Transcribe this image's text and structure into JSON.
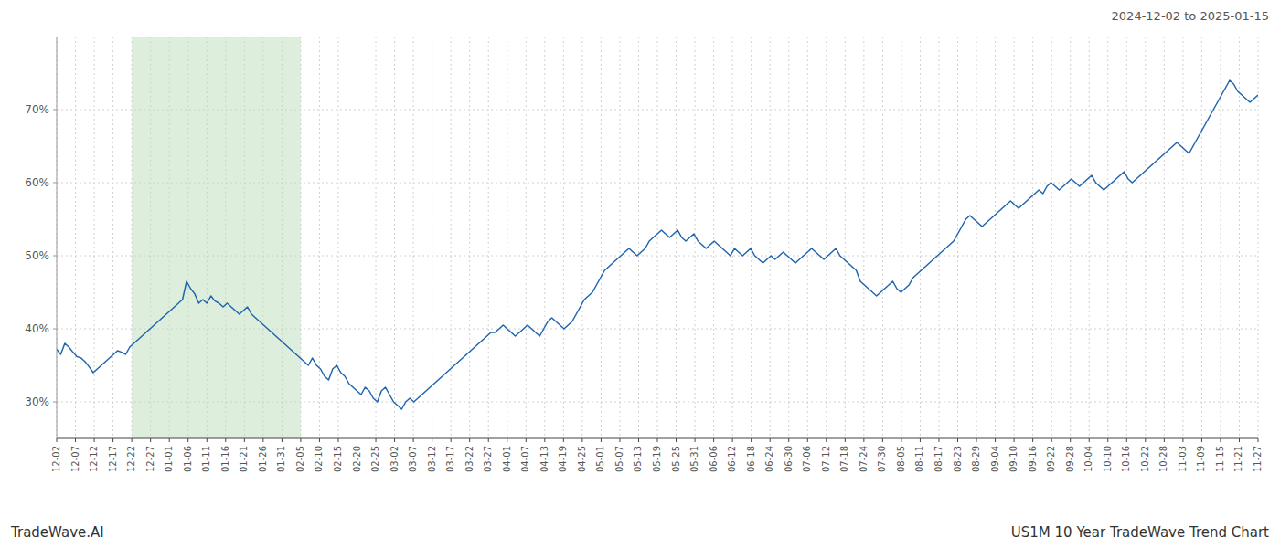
{
  "chart_data": {
    "type": "line",
    "title": "2024-12-02 to 2025-01-15",
    "annotations": [
      "TradeWave.AI",
      "US1M 10 Year TradeWave Trend Chart"
    ],
    "color": "#2166ac",
    "grid": true,
    "highlight": {
      "x": [
        18.5,
        60.125
      ],
      "color": "#d4ead4"
    },
    "xlim": [
      0,
      296
    ],
    "ylim": [
      25,
      80
    ],
    "yticks": [
      {
        "value": 30,
        "label": "30%"
      },
      {
        "value": 40,
        "label": "40%"
      },
      {
        "value": 50,
        "label": "50%"
      },
      {
        "value": 60,
        "label": "60%"
      },
      {
        "value": 70,
        "label": "70%"
      }
    ],
    "xticks": [
      {
        "value": 0,
        "label": "12-02"
      },
      {
        "value": 4.625,
        "label": "12-07"
      },
      {
        "value": 9.25,
        "label": "12-12"
      },
      {
        "value": 13.875,
        "label": "12-17"
      },
      {
        "value": 18.5,
        "label": "12-22"
      },
      {
        "value": 23.125,
        "label": "12-27"
      },
      {
        "value": 27.75,
        "label": "01-01"
      },
      {
        "value": 32.375,
        "label": "01-06"
      },
      {
        "value": 37,
        "label": "01-11"
      },
      {
        "value": 41.625,
        "label": "01-16"
      },
      {
        "value": 46.25,
        "label": "01-21"
      },
      {
        "value": 50.875,
        "label": "01-26"
      },
      {
        "value": 55.5,
        "label": "01-31"
      },
      {
        "value": 60.125,
        "label": "02-05"
      },
      {
        "value": 64.75,
        "label": "02-10"
      },
      {
        "value": 69.375,
        "label": "02-15"
      },
      {
        "value": 74,
        "label": "02-20"
      },
      {
        "value": 78.625,
        "label": "02-25"
      },
      {
        "value": 83.25,
        "label": "03-02"
      },
      {
        "value": 87.875,
        "label": "03-07"
      },
      {
        "value": 92.5,
        "label": "03-12"
      },
      {
        "value": 97.125,
        "label": "03-17"
      },
      {
        "value": 101.75,
        "label": "03-22"
      },
      {
        "value": 106.375,
        "label": "03-27"
      },
      {
        "value": 111,
        "label": "04-01"
      },
      {
        "value": 115.625,
        "label": "04-07"
      },
      {
        "value": 120.25,
        "label": "04-13"
      },
      {
        "value": 124.875,
        "label": "04-19"
      },
      {
        "value": 129.5,
        "label": "04-25"
      },
      {
        "value": 134.125,
        "label": "05-01"
      },
      {
        "value": 138.75,
        "label": "05-07"
      },
      {
        "value": 143.375,
        "label": "05-13"
      },
      {
        "value": 148,
        "label": "05-19"
      },
      {
        "value": 152.625,
        "label": "05-25"
      },
      {
        "value": 157.25,
        "label": "05-31"
      },
      {
        "value": 161.875,
        "label": "06-06"
      },
      {
        "value": 166.5,
        "label": "06-12"
      },
      {
        "value": 171.125,
        "label": "06-18"
      },
      {
        "value": 175.75,
        "label": "06-24"
      },
      {
        "value": 180.375,
        "label": "06-30"
      },
      {
        "value": 185,
        "label": "07-06"
      },
      {
        "value": 189.625,
        "label": "07-12"
      },
      {
        "value": 194.25,
        "label": "07-18"
      },
      {
        "value": 198.875,
        "label": "07-24"
      },
      {
        "value": 203.5,
        "label": "07-30"
      },
      {
        "value": 208.125,
        "label": "08-05"
      },
      {
        "value": 212.75,
        "label": "08-11"
      },
      {
        "value": 217.375,
        "label": "08-17"
      },
      {
        "value": 222,
        "label": "08-23"
      },
      {
        "value": 226.625,
        "label": "08-29"
      },
      {
        "value": 231.25,
        "label": "09-04"
      },
      {
        "value": 235.875,
        "label": "09-10"
      },
      {
        "value": 240.5,
        "label": "09-16"
      },
      {
        "value": 245.125,
        "label": "09-22"
      },
      {
        "value": 249.75,
        "label": "09-28"
      },
      {
        "value": 254.375,
        "label": "10-04"
      },
      {
        "value": 259,
        "label": "10-10"
      },
      {
        "value": 263.625,
        "label": "10-16"
      },
      {
        "value": 268.25,
        "label": "10-22"
      },
      {
        "value": 272.875,
        "label": "10-28"
      },
      {
        "value": 277.5,
        "label": "11-03"
      },
      {
        "value": 282.125,
        "label": "11-09"
      },
      {
        "value": 286.75,
        "label": "11-15"
      },
      {
        "value": 291.375,
        "label": "11-21"
      },
      {
        "value": 296,
        "label": "11-27"
      }
    ],
    "x": [
      0,
      1,
      2,
      3,
      4,
      5,
      6,
      7,
      8,
      9,
      10,
      11,
      12,
      13,
      14,
      15,
      16,
      17,
      18,
      19,
      20,
      21,
      22,
      23,
      24,
      25,
      26,
      27,
      28,
      29,
      30,
      31,
      32,
      33,
      34,
      35,
      36,
      37,
      38,
      39,
      40,
      41,
      42,
      43,
      44,
      45,
      46,
      47,
      48,
      49,
      50,
      51,
      52,
      53,
      54,
      55,
      56,
      57,
      58,
      59,
      60,
      61,
      62,
      63,
      64,
      65,
      66,
      67,
      68,
      69,
      70,
      71,
      72,
      73,
      74,
      75,
      76,
      77,
      78,
      79,
      80,
      81,
      82,
      83,
      84,
      85,
      86,
      87,
      88,
      89,
      90,
      91,
      92,
      93,
      94,
      95,
      96,
      97,
      98,
      99,
      100,
      101,
      102,
      103,
      104,
      105,
      106,
      107,
      108,
      109,
      110,
      111,
      112,
      113,
      114,
      115,
      116,
      117,
      118,
      119,
      120,
      121,
      122,
      123,
      124,
      125,
      126,
      127,
      128,
      129,
      130,
      131,
      132,
      133,
      134,
      135,
      136,
      137,
      138,
      139,
      140,
      141,
      142,
      143,
      144,
      145,
      146,
      147,
      148,
      149,
      150,
      151,
      152,
      153,
      154,
      155,
      156,
      157,
      158,
      159,
      160,
      161,
      162,
      163,
      164,
      165,
      166,
      167,
      168,
      169,
      170,
      171,
      172,
      173,
      174,
      175,
      176,
      177,
      178,
      179,
      180,
      181,
      182,
      183,
      184,
      185,
      186,
      187,
      188,
      189,
      190,
      191,
      192,
      193,
      194,
      195,
      196,
      197,
      198,
      199,
      200,
      201,
      202,
      203,
      204,
      205,
      206,
      207,
      208,
      209,
      210,
      211,
      212,
      213,
      214,
      215,
      216,
      217,
      218,
      219,
      220,
      221,
      222,
      223,
      224,
      225,
      226,
      227,
      228,
      229,
      230,
      231,
      232,
      233,
      234,
      235,
      236,
      237,
      238,
      239,
      240,
      241,
      242,
      243,
      244,
      245,
      246,
      247,
      248,
      249,
      250,
      251,
      252,
      253,
      254,
      255,
      256,
      257,
      258,
      259,
      260,
      261,
      262,
      263,
      264,
      265,
      266,
      267,
      268,
      269,
      270,
      271,
      272,
      273,
      274,
      275,
      276,
      277,
      278,
      279,
      280,
      281,
      282,
      283,
      284,
      285,
      286,
      287,
      288,
      289,
      290,
      291,
      292,
      293,
      294,
      295,
      296
    ],
    "values": [
      37.2,
      36.5,
      38.0,
      37.5,
      36.8,
      36.2,
      36.0,
      35.5,
      34.8,
      34.0,
      34.5,
      35.0,
      35.5,
      36.0,
      36.5,
      37.0,
      36.8,
      36.5,
      37.5,
      38.0,
      38.5,
      39.0,
      39.5,
      40.0,
      40.5,
      41.0,
      41.5,
      42.0,
      42.5,
      43.0,
      43.5,
      44.0,
      46.5,
      45.5,
      44.8,
      43.5,
      44.0,
      43.5,
      44.5,
      43.8,
      43.5,
      43.0,
      43.5,
      43.0,
      42.5,
      42.0,
      42.5,
      43.0,
      42.0,
      41.5,
      41.0,
      40.5,
      40.0,
      39.5,
      39.0,
      38.5,
      38.0,
      37.5,
      37.0,
      36.5,
      36.0,
      35.5,
      35.0,
      36.0,
      35.0,
      34.5,
      33.5,
      33.0,
      34.5,
      35.0,
      34.0,
      33.5,
      32.5,
      32.0,
      31.5,
      31.0,
      32.0,
      31.5,
      30.5,
      30.0,
      31.5,
      32.0,
      31.0,
      30.0,
      29.5,
      29.0,
      30.0,
      30.5,
      30.0,
      30.5,
      31.0,
      31.5,
      32.0,
      32.5,
      33.0,
      33.5,
      34.0,
      34.5,
      35.0,
      35.5,
      36.0,
      36.5,
      37.0,
      37.5,
      38.0,
      38.5,
      39.0,
      39.5,
      39.5,
      40.0,
      40.5,
      40.0,
      39.5,
      39.0,
      39.5,
      40.0,
      40.5,
      40.0,
      39.5,
      39.0,
      40.0,
      41.0,
      41.5,
      41.0,
      40.5,
      40.0,
      40.5,
      41.0,
      42.0,
      43.0,
      44.0,
      44.5,
      45.0,
      46.0,
      47.0,
      48.0,
      48.5,
      49.0,
      49.5,
      50.0,
      50.5,
      51.0,
      50.5,
      50.0,
      50.5,
      51.0,
      52.0,
      52.5,
      53.0,
      53.5,
      53.0,
      52.5,
      53.0,
      53.5,
      52.5,
      52.0,
      52.5,
      53.0,
      52.0,
      51.5,
      51.0,
      51.5,
      52.0,
      51.5,
      51.0,
      50.5,
      50.0,
      51.0,
      50.5,
      50.0,
      50.5,
      51.0,
      50.0,
      49.5,
      49.0,
      49.5,
      50.0,
      49.5,
      50.0,
      50.5,
      50.0,
      49.5,
      49.0,
      49.5,
      50.0,
      50.5,
      51.0,
      50.5,
      50.0,
      49.5,
      50.0,
      50.5,
      51.0,
      50.0,
      49.5,
      49.0,
      48.5,
      48.0,
      46.5,
      46.0,
      45.5,
      45.0,
      44.5,
      45.0,
      45.5,
      46.0,
      46.5,
      45.5,
      45.0,
      45.5,
      46.0,
      47.0,
      47.5,
      48.0,
      48.5,
      49.0,
      49.5,
      50.0,
      50.5,
      51.0,
      51.5,
      52.0,
      53.0,
      54.0,
      55.0,
      55.5,
      55.0,
      54.5,
      54.0,
      54.5,
      55.0,
      55.5,
      56.0,
      56.5,
      57.0,
      57.5,
      57.0,
      56.5,
      57.0,
      57.5,
      58.0,
      58.5,
      59.0,
      58.5,
      59.5,
      60.0,
      59.5,
      59.0,
      59.5,
      60.0,
      60.5,
      60.0,
      59.5,
      60.0,
      60.5,
      61.0,
      60.0,
      59.5,
      59.0,
      59.5,
      60.0,
      60.5,
      61.0,
      61.5,
      60.5,
      60.0,
      60.5,
      61.0,
      61.5,
      62.0,
      62.5,
      63.0,
      63.5,
      64.0,
      64.5,
      65.0,
      65.5,
      65.0,
      64.5,
      64.0,
      65.0,
      66.0,
      67.0,
      68.0,
      69.0,
      70.0,
      71.0,
      72.0,
      73.0,
      74.0,
      73.5,
      72.5,
      72.0,
      71.5,
      71.0,
      71.5,
      72.0
    ]
  }
}
